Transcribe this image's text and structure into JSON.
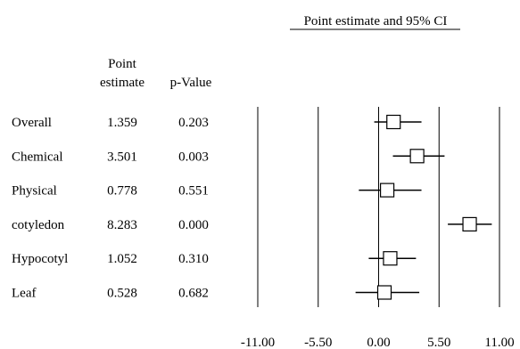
{
  "chart_data": {
    "type": "forest",
    "title": "Point estimate and 95% CI",
    "columns": {
      "estimate_header": [
        "Point",
        "estimate"
      ],
      "pvalue_header": "p-Value"
    },
    "rows": [
      {
        "label": "Overall",
        "estimate_text": "1.359",
        "p_text": "0.203",
        "estimate": 1.359,
        "ci": [
          -0.4,
          3.9
        ]
      },
      {
        "label": "Chemical",
        "estimate_text": "3.501",
        "p_text": "0.003",
        "estimate": 3.501,
        "ci": [
          1.3,
          6.0
        ]
      },
      {
        "label": "Physical",
        "estimate_text": "0.778",
        "p_text": "0.551",
        "estimate": 0.778,
        "ci": [
          -1.8,
          3.9
        ]
      },
      {
        "label": "cotyledon",
        "estimate_text": "8.283",
        "p_text": "0.000",
        "estimate": 8.283,
        "ci": [
          6.3,
          10.3
        ]
      },
      {
        "label": "Hypocotyl",
        "estimate_text": "1.052",
        "p_text": "0.310",
        "estimate": 1.052,
        "ci": [
          -0.9,
          3.4
        ]
      },
      {
        "label": "Leaf",
        "estimate_text": "0.528",
        "p_text": "0.682",
        "estimate": 0.528,
        "ci": [
          -2.1,
          3.7
        ]
      }
    ],
    "x_axis": {
      "ticks": [
        -11,
        -5.5,
        0,
        5.5,
        11
      ],
      "tick_labels": [
        "-11.00",
        "-5.50",
        "0.00",
        "5.50",
        "11.00"
      ],
      "range": [
        -11,
        11
      ]
    },
    "grid": "vertical lines at ticks"
  }
}
